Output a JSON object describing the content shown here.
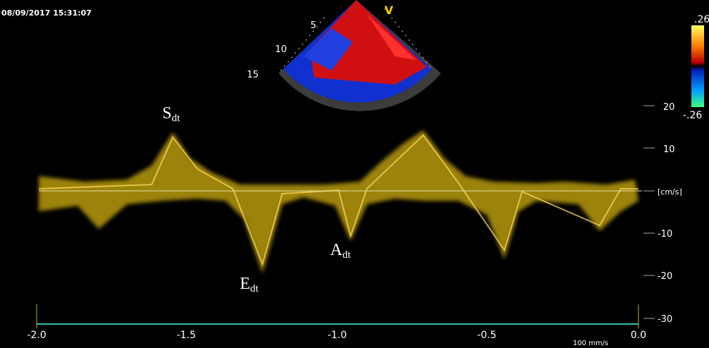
{
  "header": {
    "timestamp": "08/09/2017 15:31:07"
  },
  "sector": {
    "mode": "V",
    "depths": [
      "5",
      "10",
      "15"
    ]
  },
  "color_scale": {
    "top": ".26",
    "bottom": "-.26"
  },
  "velocity_axis": {
    "ticks": [
      "20",
      "10",
      "-10",
      "-20",
      "-30"
    ],
    "unit": "[cm/s]"
  },
  "time_axis": {
    "ticks": [
      "-2.0",
      "-1.5",
      "-1.0",
      "-0.5",
      "0.0"
    ],
    "sweep": "100 mm/s"
  },
  "annotations": [
    {
      "letter": "S",
      "sub": "dt"
    },
    {
      "letter": "E",
      "sub": "dt"
    },
    {
      "letter": "A",
      "sub": "dt"
    }
  ]
}
